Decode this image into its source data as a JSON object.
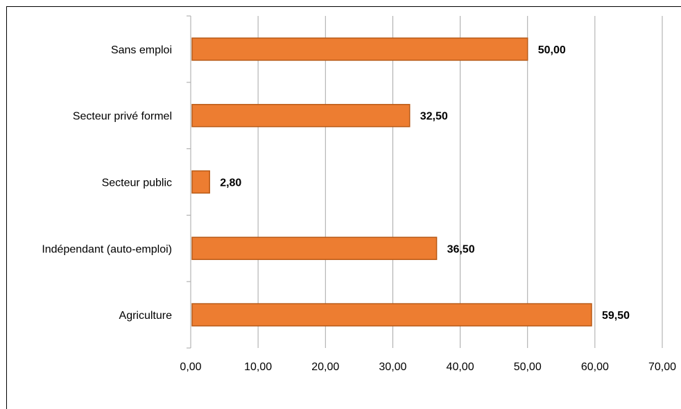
{
  "chart_data": {
    "type": "bar",
    "orientation": "horizontal",
    "categories": [
      "Sans emploi",
      "Secteur privé formel",
      "Secteur public",
      "Indépendant (auto-emploi)",
      "Agriculture"
    ],
    "values": [
      50.0,
      32.5,
      2.8,
      36.5,
      59.5
    ],
    "value_labels": [
      "50,00",
      "32,50",
      "2,80",
      "36,50",
      "59,50"
    ],
    "xlim": [
      0,
      70
    ],
    "x_ticks": [
      0,
      10,
      20,
      30,
      40,
      50,
      60,
      70
    ],
    "x_tick_labels": [
      "0,00",
      "10,00",
      "20,00",
      "30,00",
      "40,00",
      "50,00",
      "60,00",
      "70,00"
    ],
    "title": "",
    "xlabel": "",
    "ylabel": "",
    "grid": "vertical",
    "legend": "none",
    "colors": {
      "bar_fill": "#ED7D31",
      "bar_stroke": "#B85A17",
      "gridline": "#A6A6A6",
      "axis": "#A6A6A6"
    }
  }
}
